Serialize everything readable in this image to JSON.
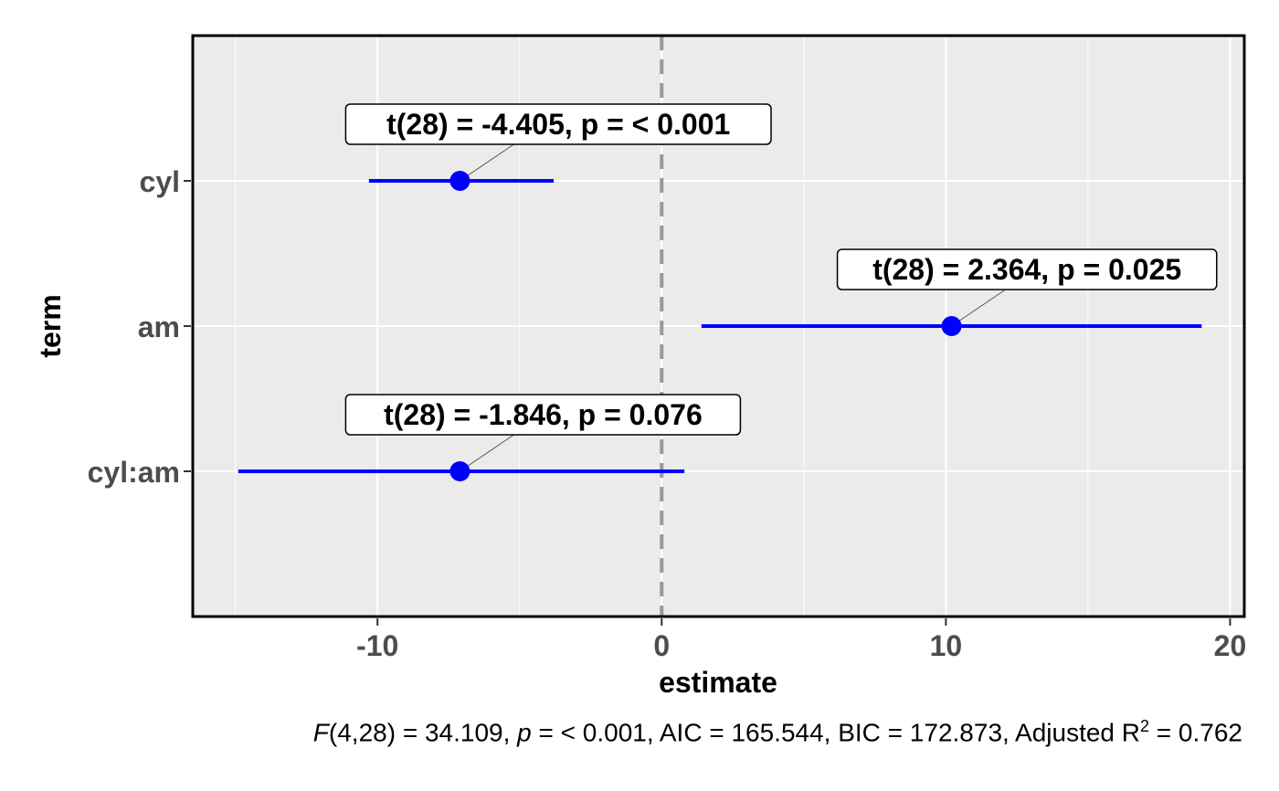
{
  "chart_data": {
    "type": "scatter",
    "subtype": "coefficient-plot",
    "xlabel": "estimate",
    "ylabel": "term",
    "xlim": [
      -16.5,
      20.5
    ],
    "x_ticks": [
      -10,
      0,
      10,
      20
    ],
    "x_tick_labels": [
      "-10",
      "0",
      "10",
      "20"
    ],
    "reference_line": 0,
    "grid": true,
    "point_color": "#0000ff",
    "reference_line_color": "#999999",
    "panel_color": "#ebebeb",
    "terms": [
      {
        "term": "cyl",
        "estimate": -7.1,
        "conf_low": -10.3,
        "conf_high": -3.8,
        "label": "t(28) = -4.405, p = < 0.001"
      },
      {
        "term": "am",
        "estimate": 10.2,
        "conf_low": 1.4,
        "conf_high": 19.0,
        "label": "t(28) = 2.364, p = 0.025"
      },
      {
        "term": "cyl:am",
        "estimate": -7.1,
        "conf_low": -14.9,
        "conf_high": 0.8,
        "label": "t(28) = -1.846, p = 0.076"
      }
    ]
  },
  "caption": {
    "f_symbol": "F",
    "f_part": "(4,28) = 34.109, ",
    "p_symbol": "p",
    "rest": " = < 0.001, AIC = 165.544, BIC = 172.873, Adjusted R",
    "sup": "2",
    "end": " = 0.762"
  }
}
